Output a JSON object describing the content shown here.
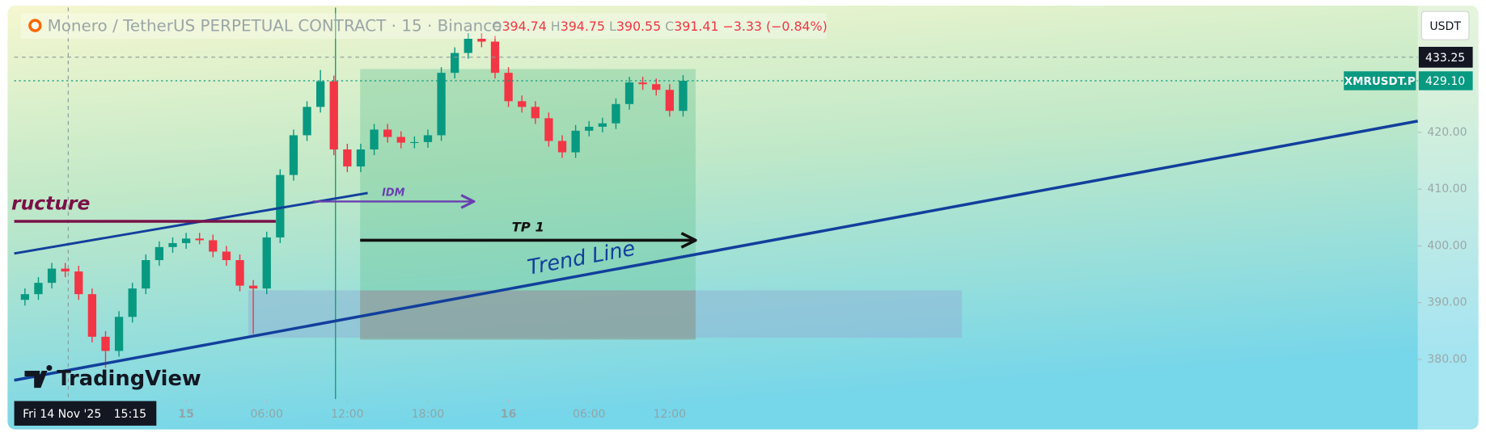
{
  "chart_data": {
    "type": "candlestick",
    "symbol": "Monero / TetherUS PERPETUAL CONTRACT · 15 · Binance",
    "ohlc_legend": {
      "O": 394.74,
      "H": 394.75,
      "L": 390.55,
      "C": 391.41,
      "change": "−3.33 (−0.84%)"
    },
    "currency": "USDT",
    "crosshair_price": 433.25,
    "crosshair_date": "Fri 14 Nov '25",
    "crosshair_time": "15:15",
    "last_price": {
      "name": "XMRUSDT.P",
      "value": 429.1,
      "label": "429.10"
    },
    "watermark": "TradingView",
    "annotations": {
      "structure": "ructure",
      "idm": "IDM",
      "tp": "TP 1",
      "trend": "Trend Line"
    },
    "up_color": "#089981",
    "down_color": "#f23645",
    "x": [
      -12,
      -11,
      -10,
      -9,
      -8,
      -7,
      -6,
      -5,
      -4,
      -3,
      -2,
      -1,
      0,
      1,
      2,
      3,
      4,
      5,
      6,
      7,
      8,
      9,
      10,
      11,
      12,
      13,
      14,
      15,
      16,
      17,
      18,
      19,
      20,
      21,
      22,
      23,
      24,
      25,
      26,
      27,
      28,
      29,
      30,
      31,
      32,
      33,
      34,
      35,
      36,
      37
    ],
    "open": [
      390.5,
      391.5,
      393.5,
      396,
      395.5,
      391.5,
      384,
      381.5,
      387.5,
      392.5,
      397.5,
      399.8,
      400.5,
      401.3,
      401,
      399,
      397.5,
      393,
      392.5,
      401.5,
      412.5,
      419.5,
      424.5,
      429,
      417,
      414,
      417,
      420.5,
      419.2,
      418.2,
      418.3,
      419.5,
      430.5,
      434,
      436.5,
      436,
      430.5,
      425.5,
      424.5,
      422.5,
      418.5,
      416.5,
      420.3,
      421,
      421.6,
      425,
      428.8,
      428.5,
      427.5,
      423.8
    ],
    "high": [
      392.5,
      394.5,
      397,
      397,
      396.5,
      392.5,
      385,
      388.5,
      393.5,
      398.5,
      400.8,
      401.5,
      402.3,
      402.3,
      402,
      400,
      398.5,
      394,
      402.5,
      413.5,
      420.5,
      425.5,
      431,
      430,
      418,
      418,
      421.5,
      421.5,
      420.2,
      419.3,
      420.5,
      431.5,
      435,
      437.5,
      437.5,
      437,
      431.5,
      426.5,
      425.5,
      423.5,
      419.5,
      421.3,
      422,
      422.6,
      426,
      429.8,
      429.8,
      429.5,
      428.5,
      430.1
    ],
    "low": [
      389.5,
      390.5,
      392.5,
      394.5,
      390.5,
      383,
      378.5,
      380.5,
      386.5,
      391.5,
      396.5,
      398.8,
      399.5,
      400.3,
      398,
      396.5,
      392,
      384.5,
      391.5,
      400.5,
      411.5,
      418.5,
      423.5,
      416,
      413,
      413,
      416,
      418.2,
      417.2,
      417.2,
      417.3,
      418.5,
      429.5,
      433,
      435,
      429.5,
      424.5,
      423.5,
      421.5,
      417.5,
      415.5,
      415.5,
      419.3,
      420,
      420.6,
      424,
      427.5,
      426.5,
      422.8,
      422.8
    ],
    "close": [
      391.5,
      393.5,
      396,
      395.5,
      391.5,
      384,
      381.5,
      387.5,
      392.5,
      397.5,
      399.8,
      400.5,
      401.3,
      401,
      399,
      397.5,
      393,
      392.5,
      401.5,
      412.5,
      419.5,
      424.5,
      429,
      417,
      414,
      417,
      420.5,
      419.2,
      418.2,
      418.3,
      419.5,
      430.5,
      434,
      436.5,
      436,
      430.5,
      425.5,
      424.5,
      422.5,
      418.5,
      416.5,
      420.3,
      421,
      421.6,
      425,
      428.8,
      428.5,
      427.5,
      423.8,
      429.1
    ],
    "xlim": [
      -12.8,
      91.7
    ],
    "xticks": [
      {
        "value": 0,
        "label": "15"
      },
      {
        "value": 6,
        "label": "06:00"
      },
      {
        "value": 12,
        "label": "12:00"
      },
      {
        "value": 18,
        "label": "18:00"
      },
      {
        "value": 24,
        "label": "16"
      },
      {
        "value": 30,
        "label": "06:00"
      },
      {
        "value": 36,
        "label": "12:00"
      }
    ],
    "ylim": [
      373,
      442
    ],
    "yticks": [
      {
        "value": 380,
        "label": "380.00"
      },
      {
        "value": 390,
        "label": "390.00"
      },
      {
        "value": 400,
        "label": "400.00"
      },
      {
        "value": 410,
        "label": "410.00"
      },
      {
        "value": 420,
        "label": "420.00"
      }
    ]
  }
}
